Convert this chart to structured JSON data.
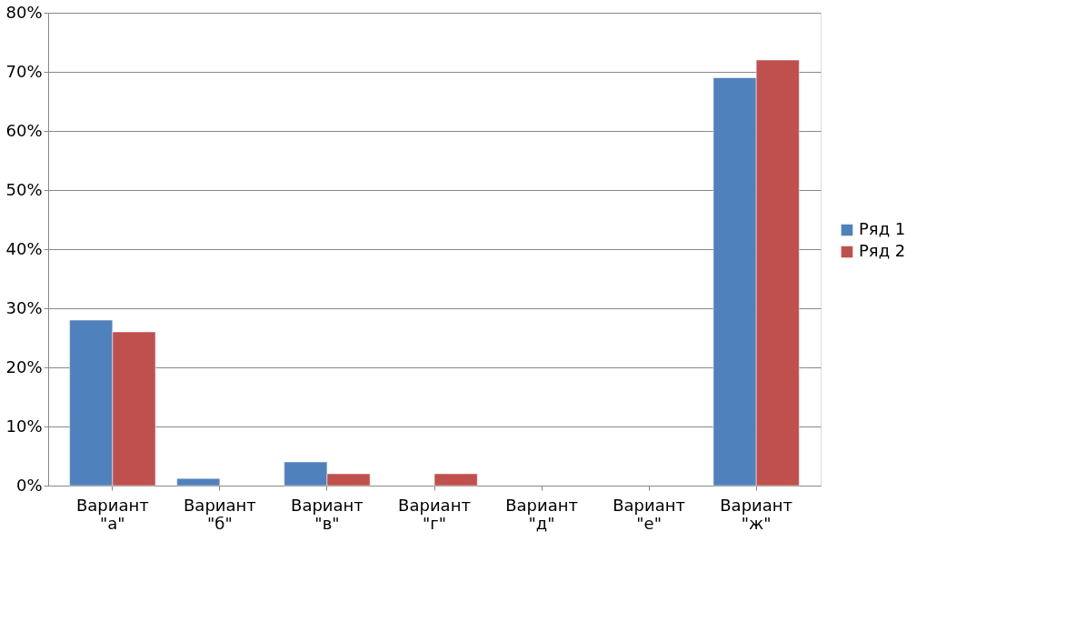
{
  "chart_data": {
    "type": "bar",
    "categories": [
      "Вариант \"а\"",
      "Вариант \"б\"",
      "Вариант \"в\"",
      "Вариант \"г\"",
      "Вариант \"д\"",
      "Вариант \"е\"",
      "Вариант \"ж\""
    ],
    "series": [
      {
        "name": "Ряд 1",
        "color": "#4f81bd",
        "values": [
          28,
          1.2,
          4,
          null,
          null,
          null,
          69
        ]
      },
      {
        "name": "Ряд 2",
        "color": "#c0504d",
        "values": [
          26,
          null,
          2,
          2,
          null,
          null,
          72
        ]
      }
    ],
    "ylim": [
      0,
      80
    ],
    "yticks": [
      {
        "value": 0,
        "label": "0%"
      },
      {
        "value": 10,
        "label": "10%"
      },
      {
        "value": 20,
        "label": "20%"
      },
      {
        "value": 30,
        "label": "30%"
      },
      {
        "value": 40,
        "label": "40%"
      },
      {
        "value": 50,
        "label": "50%"
      },
      {
        "value": 60,
        "label": "60%"
      },
      {
        "value": 70,
        "label": "70%"
      },
      {
        "value": 80,
        "label": "80%"
      }
    ],
    "grid": "y",
    "legend": "right"
  }
}
